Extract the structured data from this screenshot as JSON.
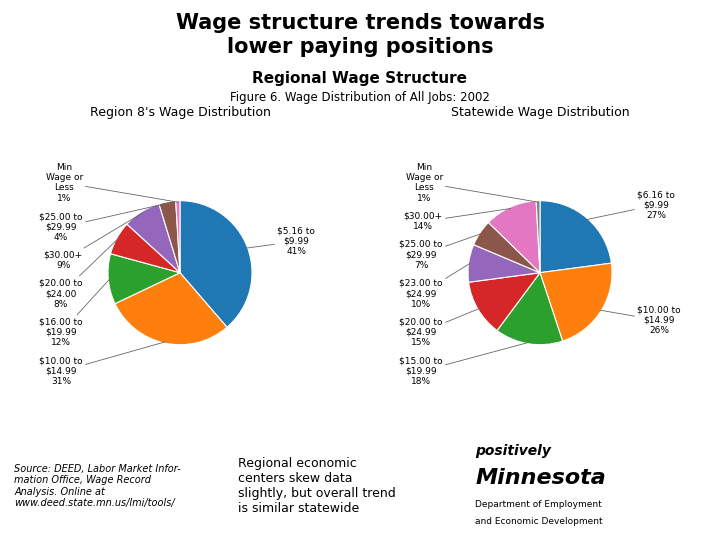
{
  "title": "Wage structure trends towards\nlower paying positions",
  "subtitle": "Regional Wage Structure",
  "annotations": [
    "Figure 6. Wage Distribution of All Jobs: 2002",
    "Source: DEED, Labor Market Infor-\nmation Office, Wage Record\nAnalysis. Online at\nwww.deed.state.mn.us/lmi/tools/",
    "Regional economic\ncenters skew data\nslightly, but overall trend\nis similar statewide",
    "positively",
    "Minnesota",
    "Department of Employment",
    "and Economic Development"
  ],
  "chart_data": [
    {
      "type": "pie",
      "title": "Region 8's Wage Distribution",
      "values": [
        41,
        31,
        12,
        8,
        9,
        4,
        1
      ],
      "labels": [
        "$5.16 to\n$9.99\n41%",
        "$10.00 to\n$14.99\n31%",
        "$16.00 to\n$19.99\n12%",
        "$20.00 to\n$24.00\n8%",
        "$30.00+\n9%",
        "$25.00 to\n$29.99\n4%",
        "Min\nWage or\nLess\n1%"
      ]
    },
    {
      "type": "pie",
      "title": "Statewide Wage Distribution",
      "values": [
        27,
        26,
        18,
        15,
        10,
        7,
        14,
        1
      ],
      "labels": [
        "$6.16 to\n$9.99\n27%",
        "$10.00 to\n$14.99\n26%",
        "$15.00 to\n$19.99\n18%",
        "$20.00 to\n$24.99\n15%",
        "$23.00 to\n$24.99\n10%",
        "$25.00 to\n$29.99\n7%",
        "$30.00+\n14%",
        "Min\nWage or\nLess\n1%"
      ]
    }
  ]
}
